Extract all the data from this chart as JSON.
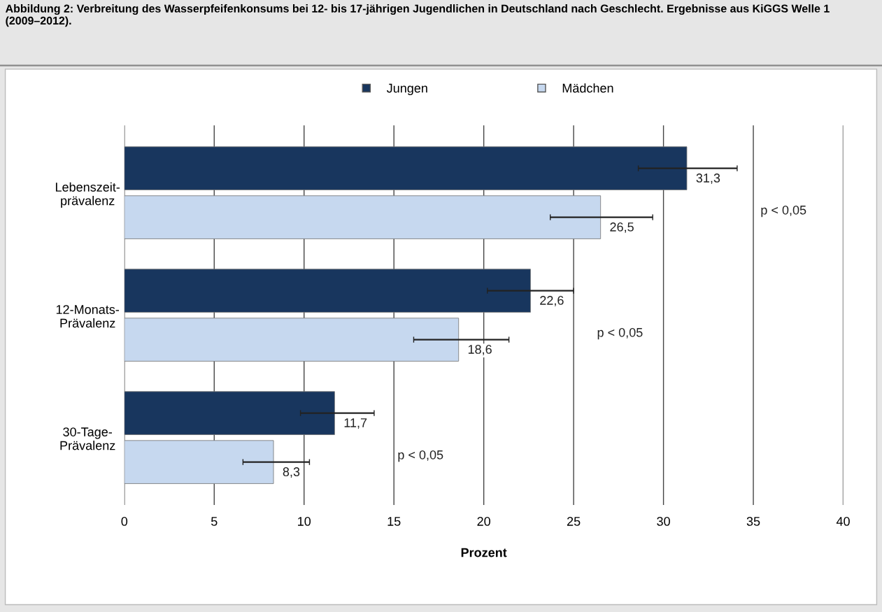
{
  "chart_data": {
    "type": "bar",
    "orientation": "horizontal",
    "title": "Abbildung 2: Verbreitung des Wasserpfeifenkonsums bei 12- bis 17-jährigen Jugendlichen in Deutschland nach Geschlecht. Ergebnisse aus KiGGS Welle 1 (2009–2012).",
    "xlabel": "Prozent",
    "categories": [
      "Lebenszeit-\nprävalenz",
      "12-Monats-\nPrävalenz",
      "30-Tage-\nPrävalenz"
    ],
    "series": [
      {
        "name": "Jungen",
        "color": "#18365e",
        "values": [
          31.3,
          22.6,
          11.7
        ],
        "value_labels": [
          "31,3",
          "22,6",
          "11,7"
        ],
        "errors": [
          [
            28.6,
            34.1
          ],
          [
            20.2,
            25.0
          ],
          [
            9.8,
            13.9
          ]
        ]
      },
      {
        "name": "Mädchen",
        "color": "#c6d8ef",
        "values": [
          26.5,
          18.6,
          8.3
        ],
        "value_labels": [
          "26,5",
          "18,6",
          "8,3"
        ],
        "errors": [
          [
            23.7,
            29.4
          ],
          [
            16.1,
            21.4
          ],
          [
            6.6,
            10.3
          ]
        ]
      }
    ],
    "annotations": [
      "p < 0,05",
      "p < 0,05",
      "p < 0,05"
    ],
    "xlim": [
      0,
      40
    ],
    "xticks": [
      0,
      5,
      10,
      15,
      20,
      25,
      30,
      35,
      40
    ],
    "grid": "x",
    "legend": "top",
    "marker": "square"
  }
}
